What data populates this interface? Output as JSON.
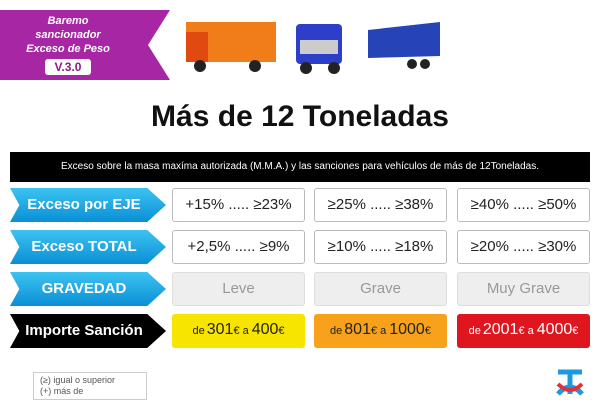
{
  "badge": {
    "line1": "Baremo sancionador",
    "line2": "Exceso de  Peso",
    "version": "V.3.0"
  },
  "title": "Más de 12 Toneladas",
  "banner": "Exceso sobre la masa maxíma autorizada (M.M.A.) y las sanciones para vehículos de más de 12Toneladas.",
  "rows": [
    {
      "label": "Exceso por EJE",
      "cells": [
        "+15% ..... ≥23%",
        "≥25% ..... ≥38%",
        "≥40% ..... ≥50%"
      ]
    },
    {
      "label": "Exceso TOTAL",
      "cells": [
        "+2,5% ..... ≥9%",
        "≥10% ..... ≥18%",
        "≥20% ..... ≥30%"
      ]
    },
    {
      "label": "GRAVEDAD",
      "cells": [
        "Leve",
        "Grave",
        "Muy Grave"
      ]
    },
    {
      "label": "Importe Sanción",
      "cells": [
        {
          "prefix": "de",
          "from": "301",
          "unit": "€",
          "sep": "a",
          "to": "400"
        },
        {
          "prefix": "de",
          "from": "801",
          "unit": "€",
          "sep": "a",
          "to": "1000"
        },
        {
          "prefix": "de",
          "from": "2001",
          "unit": "€",
          "sep": "a",
          "to": "4000"
        }
      ]
    }
  ],
  "footnote": [
    "(≥) igual o superior",
    "(+) más de"
  ]
}
